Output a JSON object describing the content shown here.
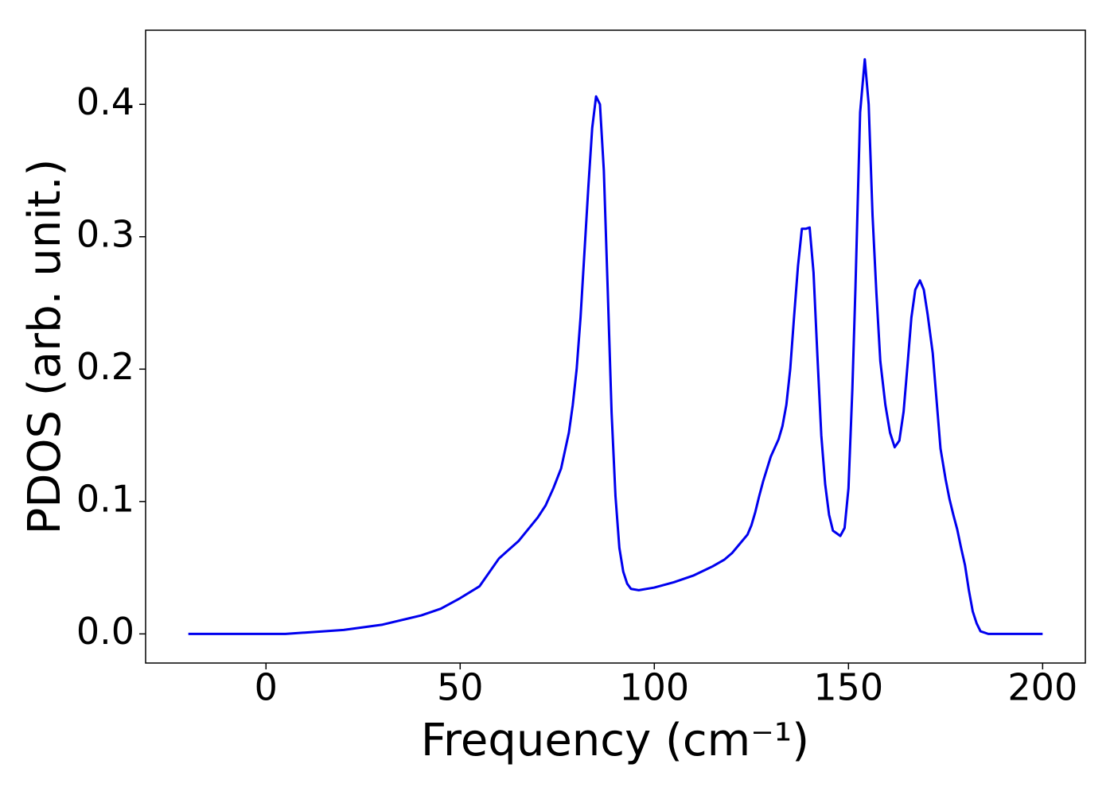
{
  "chart_data": {
    "type": "line",
    "xlabel": "Frequency (cm⁻¹)",
    "ylabel": "PDOS (arb. unit.)",
    "x": [
      -20,
      -10,
      0,
      5,
      10,
      20,
      30,
      40,
      45,
      50,
      55,
      60,
      65,
      70,
      72,
      74,
      76,
      78,
      79,
      80,
      81,
      83,
      84,
      85,
      86,
      87,
      88,
      89,
      90,
      91,
      92,
      93,
      94,
      96,
      100,
      105,
      110,
      115,
      118,
      120,
      122,
      124,
      125,
      126,
      127,
      128,
      130,
      132,
      133,
      134,
      135,
      136,
      137,
      138,
      139,
      140,
      141,
      142,
      143,
      144,
      145,
      146,
      147.9,
      149,
      150,
      151,
      151.8,
      153,
      154.2,
      155.2,
      156.2,
      157.2,
      158.2,
      159.5,
      160.7,
      161.9,
      163.1,
      164.2,
      165.2,
      166.2,
      167.2,
      168.4,
      169.4,
      170.4,
      171.7,
      172.7,
      173.7,
      175,
      176,
      177,
      178,
      179,
      180,
      181,
      182,
      183,
      184,
      186,
      190,
      200
    ],
    "series": [
      {
        "name": "PDOS",
        "color": "#0000ee",
        "values": [
          0,
          0,
          0,
          0,
          0.001,
          0.003,
          0.007,
          0.014,
          0.019,
          0.027,
          0.036,
          0.057,
          0.07,
          0.088,
          0.097,
          0.11,
          0.125,
          0.152,
          0.173,
          0.2,
          0.239,
          0.337,
          0.382,
          0.406,
          0.4,
          0.35,
          0.26,
          0.167,
          0.104,
          0.065,
          0.047,
          0.038,
          0.034,
          0.033,
          0.035,
          0.039,
          0.044,
          0.051,
          0.056,
          0.061,
          0.068,
          0.075,
          0.082,
          0.092,
          0.104,
          0.115,
          0.134,
          0.147,
          0.157,
          0.173,
          0.2,
          0.24,
          0.278,
          0.306,
          0.306,
          0.307,
          0.273,
          0.21,
          0.15,
          0.113,
          0.09,
          0.078,
          0.074,
          0.08,
          0.11,
          0.185,
          0.262,
          0.394,
          0.434,
          0.4,
          0.316,
          0.257,
          0.206,
          0.173,
          0.152,
          0.141,
          0.146,
          0.168,
          0.203,
          0.239,
          0.26,
          0.267,
          0.26,
          0.241,
          0.212,
          0.176,
          0.14,
          0.117,
          0.102,
          0.09,
          0.079,
          0.065,
          0.052,
          0.033,
          0.017,
          0.008,
          0.002,
          0,
          0,
          0
        ]
      }
    ],
    "xlim": [
      -31,
      211
    ],
    "ylim": [
      -0.022,
      0.456
    ],
    "xticks": [
      0,
      50,
      100,
      150,
      200
    ],
    "yticks": [
      {
        "value": 0,
        "label": "0.0"
      },
      0.1,
      0.2,
      0.3,
      0.4
    ],
    "grid": false
  }
}
